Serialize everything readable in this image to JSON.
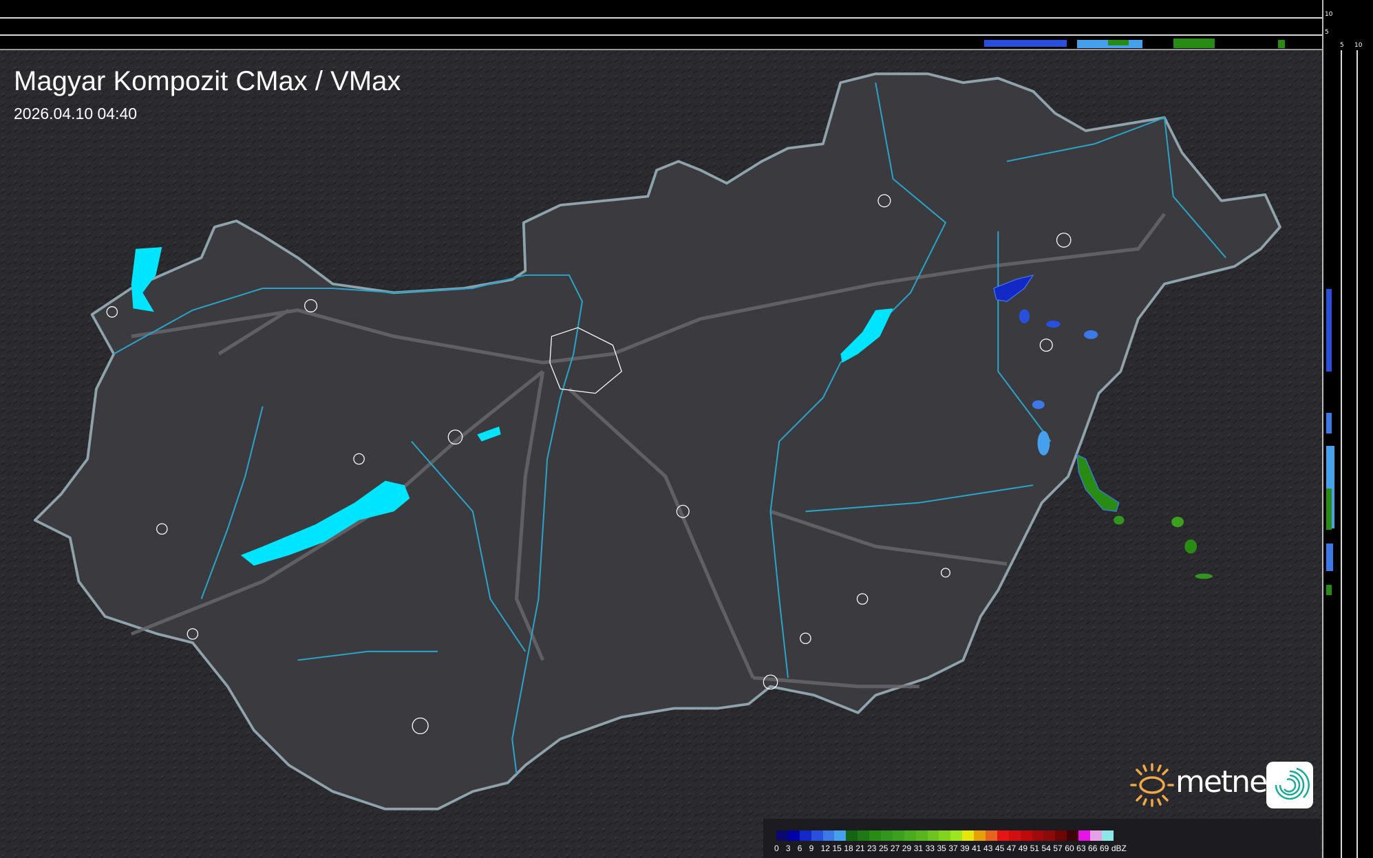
{
  "header": {
    "title": "Magyar Kompozit CMax / VMax",
    "timestamp": "2026.04.10 04:40"
  },
  "profile_axes": {
    "top_labels": [
      "10",
      "5"
    ],
    "side_labels": [
      "5",
      "10"
    ]
  },
  "legend": {
    "unit": "dBZ",
    "labels": [
      "0",
      "3",
      "6",
      "9",
      "12",
      "15",
      "18",
      "21",
      "23",
      "25",
      "27",
      "29",
      "31",
      "33",
      "35",
      "37",
      "39",
      "41",
      "43",
      "45",
      "47",
      "49",
      "51",
      "54",
      "57",
      "60",
      "63",
      "66",
      "69"
    ],
    "colors": [
      "#0a0a6e",
      "#0000a8",
      "#1428c8",
      "#2850dc",
      "#3c78e6",
      "#46a0ec",
      "#146414",
      "#1e7814",
      "#288c14",
      "#32961e",
      "#3ca01e",
      "#4bab1e",
      "#5ab41e",
      "#6ec31e",
      "#82d21e",
      "#9be61e",
      "#e6e60a",
      "#e6a00a",
      "#e6641e",
      "#e61414",
      "#d20f0f",
      "#be0a0a",
      "#a00a0a",
      "#8c0a0a",
      "#6e0505",
      "#3c0505",
      "#e614e6",
      "#e6a0e6",
      "#8ce6e6"
    ]
  },
  "branding": {
    "logo_text": "metnet"
  },
  "colors": {
    "water": "#00e5ff",
    "border": "#8fa3ad",
    "river": "#2aa3c8",
    "country_fill": "#3a3a3f"
  }
}
